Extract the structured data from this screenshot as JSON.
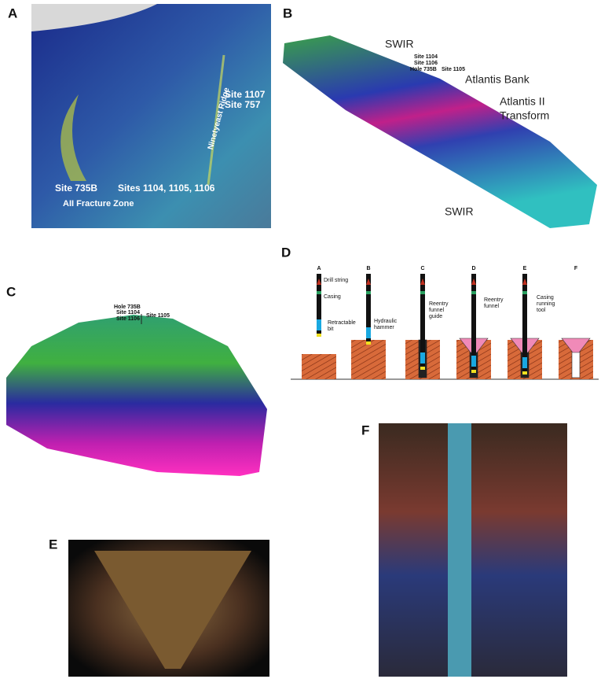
{
  "panel_labels": [
    "A",
    "B",
    "C",
    "D",
    "E",
    "F"
  ],
  "panel_a": {
    "texts": [
      "Site 1107",
      "Site 757",
      "Ninetyeast Ridge",
      "Site 735B",
      "Sites 1104, 1105, 1106",
      "AII Fracture Zone"
    ]
  },
  "panel_b": {
    "texts": [
      "SWIR",
      "Site 1104",
      "Site 1106",
      "Hole 735B",
      "Site 1105",
      "Atlantis Bank",
      "Atlantis II",
      "Transform",
      "SWIR"
    ]
  },
  "panel_c": {
    "texts": [
      "Hole 735B",
      "Site 1104",
      "Site 1106",
      "Site 1105"
    ]
  },
  "panel_d": {
    "columns": [
      "A",
      "B",
      "C",
      "D",
      "E",
      "F"
    ],
    "labels": [
      [
        "Drill string"
      ],
      [
        "Casing"
      ],
      [
        "Retractable",
        "bit"
      ],
      [
        "Hydraulic",
        "hammer"
      ],
      [
        "Reentry",
        "funnel",
        "guide"
      ],
      [
        "Reentry",
        "funnel"
      ],
      [
        "Casing",
        "running",
        "tool"
      ]
    ]
  }
}
